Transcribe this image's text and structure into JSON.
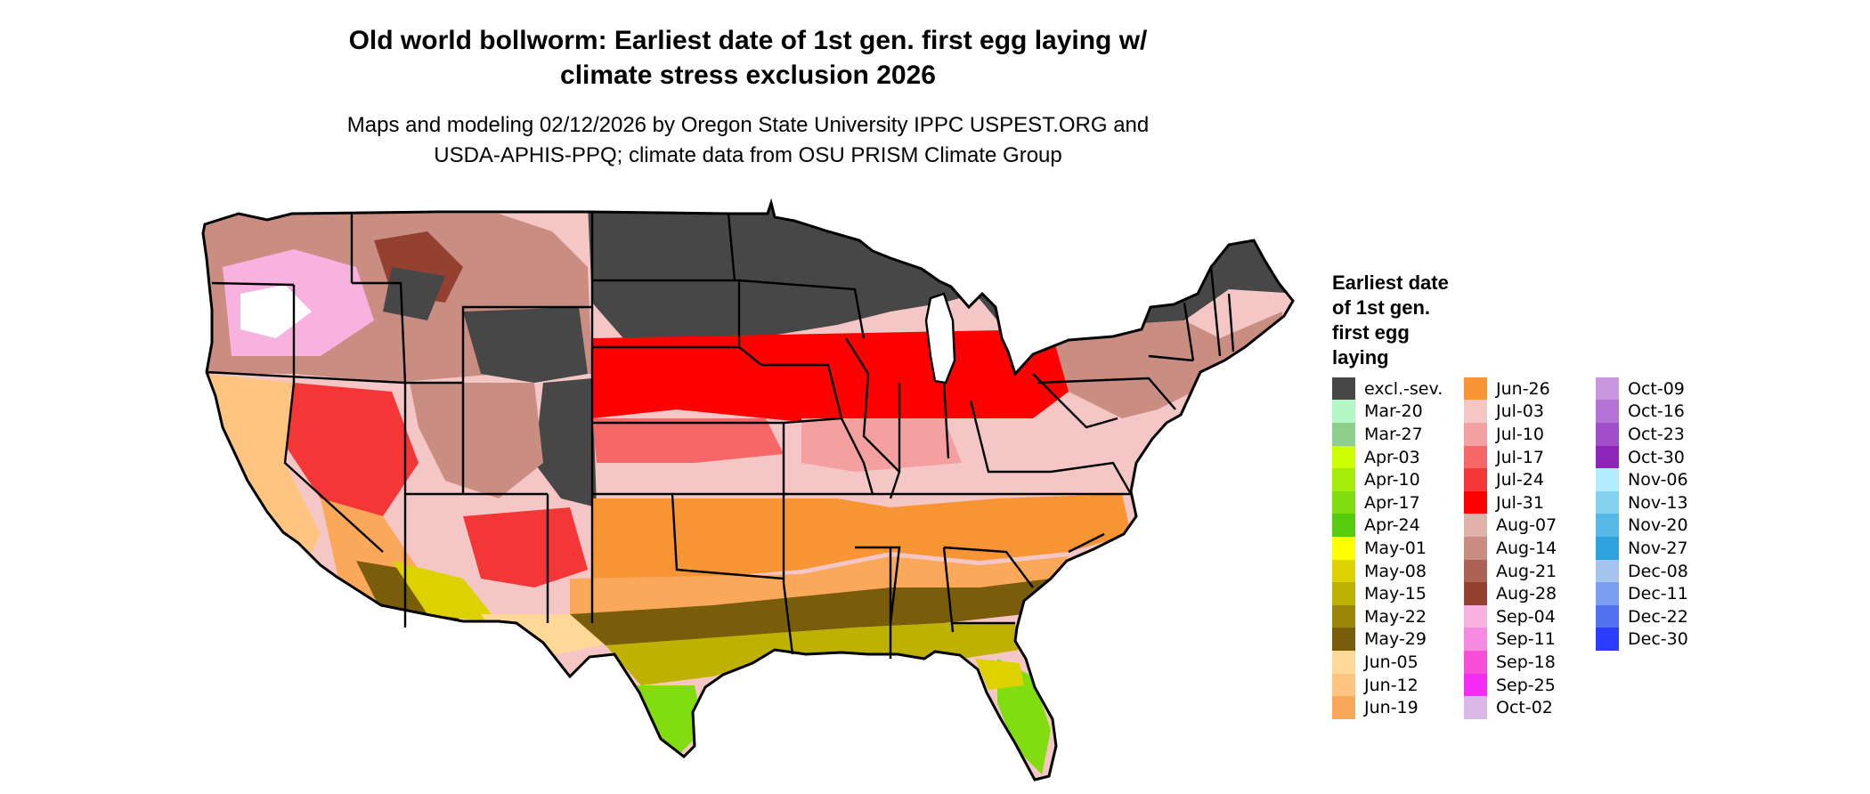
{
  "title": [
    "Old world bollworm: Earliest date of 1st gen. first egg laying w/",
    "climate stress exclusion 2026"
  ],
  "subtitle": [
    "Maps and modeling 02/12/2026 by Oregon State University IPPC USPEST.ORG and",
    "USDA-APHIS-PPQ; climate data from OSU PRISM Climate Group"
  ],
  "legend": {
    "title": [
      "Earliest date",
      "of 1st gen.",
      "first egg",
      "laying"
    ],
    "columns": [
      [
        {
          "label": "excl.-sev.",
          "color": "#474747"
        },
        {
          "label": "Mar-20",
          "color": "#b3f7c4"
        },
        {
          "label": "Mar-27",
          "color": "#8ecf8e"
        },
        {
          "label": "Apr-03",
          "color": "#ccff00"
        },
        {
          "label": "Apr-10",
          "color": "#a6ec0b"
        },
        {
          "label": "Apr-17",
          "color": "#82dd10"
        },
        {
          "label": "Apr-24",
          "color": "#57cc0f"
        },
        {
          "label": "May-01",
          "color": "#ffff00"
        },
        {
          "label": "May-08",
          "color": "#ddd200"
        },
        {
          "label": "May-15",
          "color": "#bfb100"
        },
        {
          "label": "May-22",
          "color": "#9c8706"
        },
        {
          "label": "May-29",
          "color": "#7a5d0a"
        },
        {
          "label": "Jun-05",
          "color": "#ffd796"
        },
        {
          "label": "Jun-12",
          "color": "#ffc580"
        },
        {
          "label": "Jun-19",
          "color": "#fca85a"
        }
      ],
      [
        {
          "label": "Jun-26",
          "color": "#f79433"
        },
        {
          "label": "Jul-03",
          "color": "#f5c6c6"
        },
        {
          "label": "Jul-10",
          "color": "#f5a0a0"
        },
        {
          "label": "Jul-17",
          "color": "#f76767"
        },
        {
          "label": "Jul-24",
          "color": "#f53636"
        },
        {
          "label": "Jul-31",
          "color": "#ff0000"
        },
        {
          "label": "Aug-07",
          "color": "#e0b2a9"
        },
        {
          "label": "Aug-14",
          "color": "#c98d82"
        },
        {
          "label": "Aug-21",
          "color": "#ad6354"
        },
        {
          "label": "Aug-28",
          "color": "#94412f"
        },
        {
          "label": "Sep-04",
          "color": "#f7b2df"
        },
        {
          "label": "Sep-11",
          "color": "#f78ae0"
        },
        {
          "label": "Sep-18",
          "color": "#f74fd9"
        },
        {
          "label": "Sep-25",
          "color": "#f52cf5"
        },
        {
          "label": "Oct-02",
          "color": "#dcb8e8"
        }
      ],
      [
        {
          "label": "Oct-09",
          "color": "#c996e0"
        },
        {
          "label": "Oct-16",
          "color": "#b673d6"
        },
        {
          "label": "Oct-23",
          "color": "#a14ec9"
        },
        {
          "label": "Oct-30",
          "color": "#8d26b8"
        },
        {
          "label": "Nov-06",
          "color": "#b3ecff"
        },
        {
          "label": "Nov-13",
          "color": "#85d2f0"
        },
        {
          "label": "Nov-20",
          "color": "#55b8e6"
        },
        {
          "label": "Nov-27",
          "color": "#2ea2dc"
        },
        {
          "label": "Dec-08",
          "color": "#a6c4f0"
        },
        {
          "label": "Dec-11",
          "color": "#7a9ff0"
        },
        {
          "label": "Dec-22",
          "color": "#5271f0"
        },
        {
          "label": "Dec-30",
          "color": "#2b3cff"
        }
      ]
    ]
  }
}
